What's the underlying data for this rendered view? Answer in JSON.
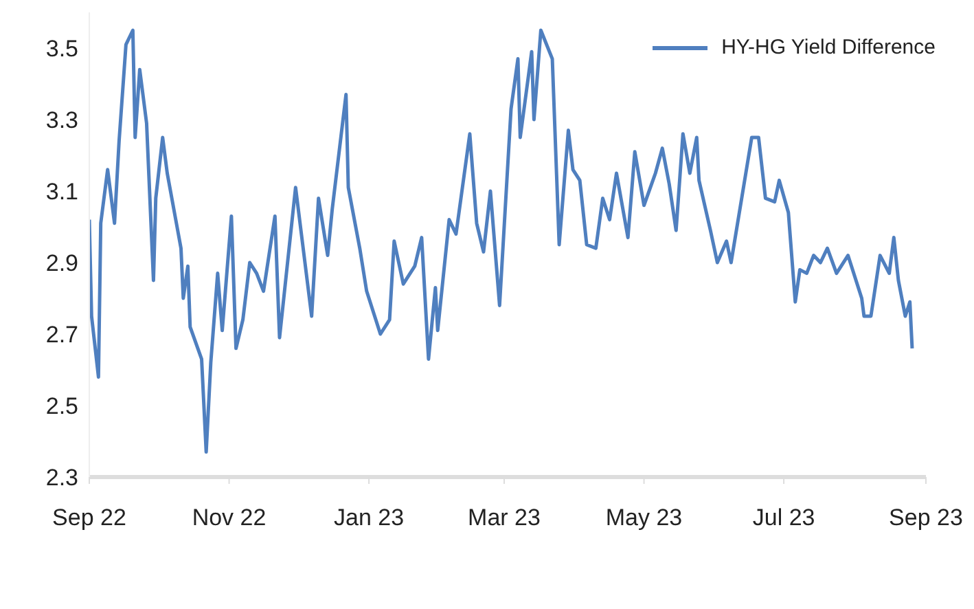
{
  "chart_data": {
    "type": "line",
    "x": [
      "2022-09-01",
      "2022-09-02",
      "2022-09-05",
      "2022-09-06",
      "2022-09-09",
      "2022-09-12",
      "2022-09-14",
      "2022-09-17",
      "2022-09-20",
      "2022-09-21",
      "2022-09-23",
      "2022-09-26",
      "2022-09-29",
      "2022-09-30",
      "2022-10-03",
      "2022-10-05",
      "2022-10-11",
      "2022-10-12",
      "2022-10-14",
      "2022-10-15",
      "2022-10-20",
      "2022-10-22",
      "2022-10-24",
      "2022-10-27",
      "2022-10-29",
      "2022-11-02",
      "2022-11-04",
      "2022-11-07",
      "2022-11-10",
      "2022-11-13",
      "2022-11-16",
      "2022-11-21",
      "2022-11-23",
      "2022-11-30",
      "2022-12-07",
      "2022-12-10",
      "2022-12-14",
      "2022-12-16",
      "2022-12-22",
      "2022-12-23",
      "2022-12-28",
      "2022-12-31",
      "2023-01-06",
      "2023-01-10",
      "2023-01-12",
      "2023-01-16",
      "2023-01-21",
      "2023-01-24",
      "2023-01-27",
      "2023-01-30",
      "2023-01-31",
      "2023-02-05",
      "2023-02-08",
      "2023-02-14",
      "2023-02-17",
      "2023-02-20",
      "2023-02-23",
      "2023-02-27",
      "2023-03-04",
      "2023-03-07",
      "2023-03-08",
      "2023-03-13",
      "2023-03-14",
      "2023-03-17",
      "2023-03-22",
      "2023-03-25",
      "2023-03-29",
      "2023-03-31",
      "2023-04-03",
      "2023-04-06",
      "2023-04-10",
      "2023-04-13",
      "2023-04-16",
      "2023-04-19",
      "2023-04-24",
      "2023-04-27",
      "2023-05-01",
      "2023-05-06",
      "2023-05-09",
      "2023-05-12",
      "2023-05-15",
      "2023-05-18",
      "2023-05-21",
      "2023-05-24",
      "2023-05-25",
      "2023-05-30",
      "2023-06-02",
      "2023-06-06",
      "2023-06-08",
      "2023-06-17",
      "2023-06-20",
      "2023-06-23",
      "2023-06-27",
      "2023-06-29",
      "2023-07-03",
      "2023-07-06",
      "2023-07-08",
      "2023-07-11",
      "2023-07-14",
      "2023-07-17",
      "2023-07-20",
      "2023-07-24",
      "2023-07-29",
      "2023-08-04",
      "2023-08-05",
      "2023-08-08",
      "2023-08-12",
      "2023-08-16",
      "2023-08-18",
      "2023-08-20",
      "2023-08-23",
      "2023-08-25",
      "2023-08-26"
    ],
    "series": [
      {
        "name": "HY-HG Yield Difference",
        "color": "#4f7fbf",
        "values": [
          3.02,
          2.75,
          2.58,
          3.01,
          3.16,
          3.01,
          3.24,
          3.51,
          3.55,
          3.25,
          3.44,
          3.29,
          2.85,
          3.08,
          3.25,
          3.15,
          2.94,
          2.8,
          2.89,
          2.72,
          2.63,
          2.37,
          2.62,
          2.87,
          2.71,
          3.03,
          2.66,
          2.74,
          2.9,
          2.87,
          2.82,
          3.03,
          2.69,
          3.11,
          2.75,
          3.08,
          2.92,
          3.05,
          3.37,
          3.11,
          2.94,
          2.82,
          2.7,
          2.74,
          2.96,
          2.84,
          2.89,
          2.97,
          2.63,
          2.83,
          2.71,
          3.02,
          2.98,
          3.26,
          3.01,
          2.93,
          3.1,
          2.78,
          3.33,
          3.47,
          3.25,
          3.49,
          3.3,
          3.55,
          3.47,
          2.95,
          3.27,
          3.16,
          3.13,
          2.95,
          2.94,
          3.08,
          3.02,
          3.15,
          2.97,
          3.21,
          3.06,
          3.15,
          3.22,
          3.12,
          2.99,
          3.26,
          3.15,
          3.25,
          3.13,
          2.99,
          2.9,
          2.96,
          2.9,
          3.25,
          3.25,
          3.08,
          3.07,
          3.13,
          3.04,
          2.79,
          2.88,
          2.87,
          2.92,
          2.9,
          2.94,
          2.87,
          2.92,
          2.8,
          2.75,
          2.75,
          2.92,
          2.87,
          2.97,
          2.85,
          2.75,
          2.79,
          2.66
        ]
      }
    ],
    "xlim": [
      "2022-09-01",
      "2023-09-01"
    ],
    "xticks": [
      {
        "value": "2022-09-01",
        "label": "Sep 22"
      },
      {
        "value": "2022-11-01",
        "label": "Nov 22"
      },
      {
        "value": "2023-01-01",
        "label": "Jan 23"
      },
      {
        "value": "2023-03-01",
        "label": "Mar 23"
      },
      {
        "value": "2023-05-01",
        "label": "May 23"
      },
      {
        "value": "2023-07-01",
        "label": "Jul 23"
      },
      {
        "value": "2023-09-01",
        "label": "Sep 23"
      }
    ],
    "ylim": [
      2.3,
      3.6
    ],
    "yticks": [
      2.3,
      2.5,
      2.7,
      2.9,
      3.1,
      3.3,
      3.5
    ],
    "legend": "top right",
    "grid": false,
    "marker": "none",
    "line_style": "solid"
  }
}
